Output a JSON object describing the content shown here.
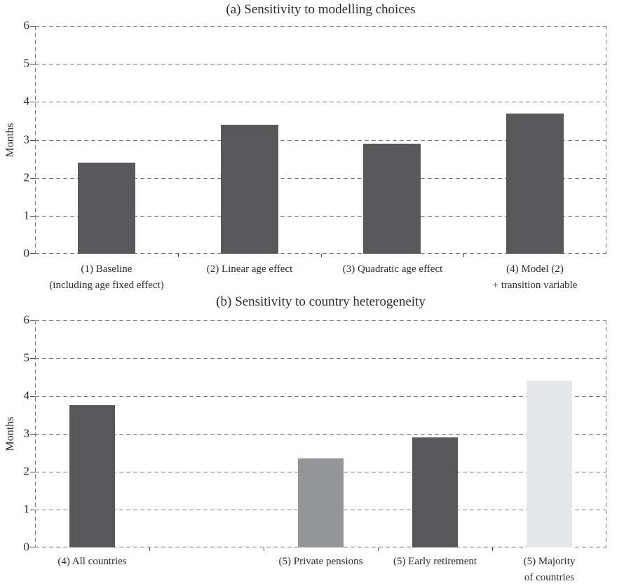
{
  "figure": {
    "background": "#ffffff",
    "text_color": "#2b2b2b",
    "grid_color": "#7a7a7a",
    "tick_color": "#4a4a4a"
  },
  "chart_data": [
    {
      "type": "bar",
      "title": "(a) Sensitivity to modelling choices",
      "ylabel": "Months",
      "xlabel": "",
      "ylim": [
        0,
        6
      ],
      "yticks": [
        0,
        1,
        2,
        3,
        4,
        5,
        6
      ],
      "grid": "dashed-horizontal-and-dashed-frame",
      "legend": "none",
      "num_slots": 4,
      "bars": [
        {
          "slot": 0,
          "label_lines": [
            "(1) Baseline",
            "(including age fixed effect)"
          ],
          "value": 2.4,
          "color": "#58585a"
        },
        {
          "slot": 1,
          "label_lines": [
            "(2) Linear age effect"
          ],
          "value": 3.4,
          "color": "#58585a"
        },
        {
          "slot": 2,
          "label_lines": [
            "(3) Quadratic age effect"
          ],
          "value": 2.9,
          "color": "#58585a"
        },
        {
          "slot": 3,
          "label_lines": [
            "(4) Model (2)",
            "+ transition variable"
          ],
          "value": 3.7,
          "color": "#58585a"
        }
      ]
    },
    {
      "type": "bar",
      "title": "(b) Sensitivity to country heterogeneity",
      "ylabel": "Months",
      "xlabel": "",
      "ylim": [
        0,
        6
      ],
      "yticks": [
        0,
        1,
        2,
        3,
        4,
        5,
        6
      ],
      "grid": "dashed-horizontal-and-dashed-frame",
      "legend": "none",
      "num_slots": 5,
      "bars": [
        {
          "slot": 0,
          "label_lines": [
            "(4) All countries"
          ],
          "value": 3.75,
          "color": "#58585a"
        },
        {
          "slot": 2,
          "label_lines": [
            "(5) Private pensions"
          ],
          "value": 2.35,
          "color": "#939598"
        },
        {
          "slot": 3,
          "label_lines": [
            "(5) Early retirement"
          ],
          "value": 2.9,
          "color": "#58585a"
        },
        {
          "slot": 4,
          "label_lines": [
            "(5) Majority",
            "of countries"
          ],
          "value": 4.4,
          "color": "#e6e7e8"
        }
      ]
    }
  ]
}
